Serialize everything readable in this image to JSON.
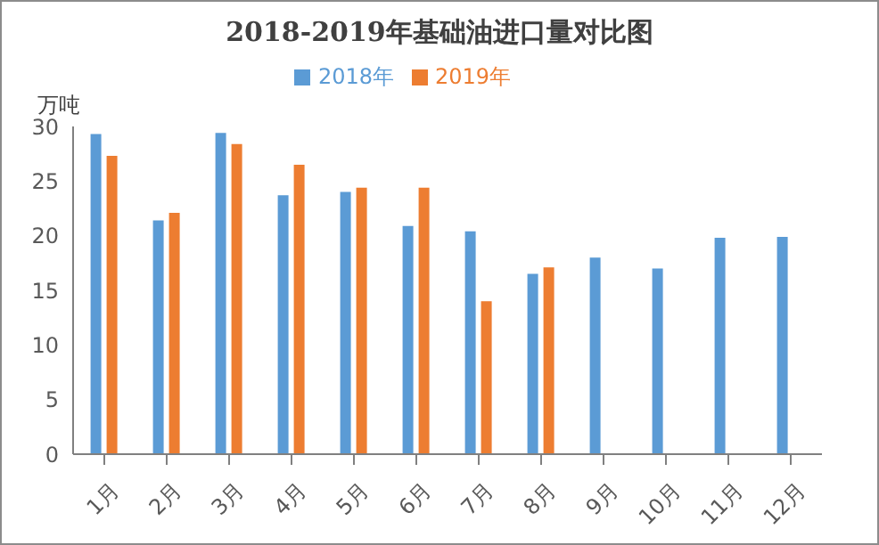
{
  "chart_data": {
    "type": "bar",
    "title": "2018-2019年基础油进口量对比图",
    "ylabel": "万吨",
    "categories": [
      "1月",
      "2月",
      "3月",
      "4月",
      "5月",
      "6月",
      "7月",
      "8月",
      "9月",
      "10月",
      "11月",
      "12月"
    ],
    "series": [
      {
        "name": "2018年",
        "color": "#5b9bd5",
        "values": [
          29.3,
          21.4,
          29.4,
          23.7,
          24.0,
          20.9,
          20.4,
          16.5,
          18.0,
          17.0,
          19.8,
          19.9
        ]
      },
      {
        "name": "2019年",
        "color": "#ed7d31",
        "values": [
          27.3,
          22.1,
          28.4,
          26.5,
          24.4,
          24.4,
          14.0,
          17.1,
          null,
          null,
          null,
          null
        ]
      }
    ],
    "ylim": [
      0,
      30
    ],
    "yticks": [
      0,
      5,
      10,
      15,
      20,
      25,
      30
    ],
    "grid": false,
    "legend": "top"
  }
}
